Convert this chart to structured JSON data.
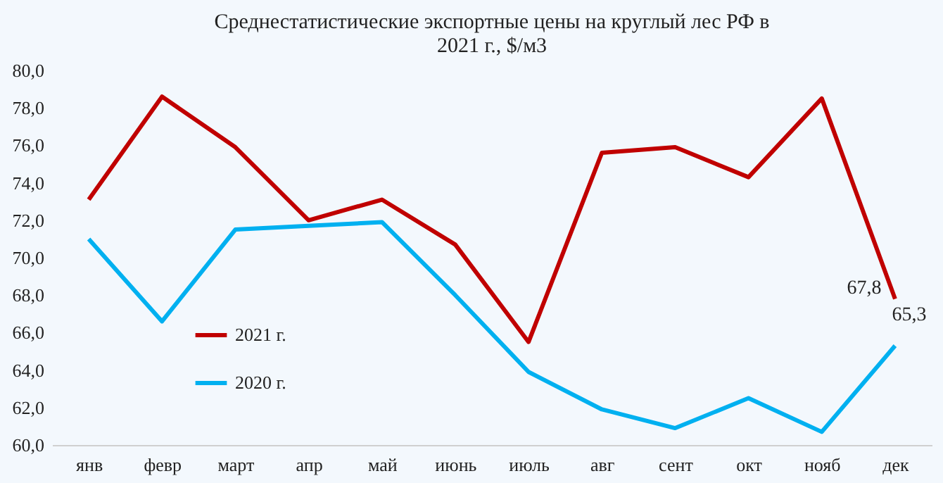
{
  "chart_data": {
    "type": "line",
    "title": "Среднестатистические экспортные цены на круглый лес РФ в 2021 г., $/м3",
    "categories": [
      "янв",
      "февр",
      "март",
      "апр",
      "май",
      "июнь",
      "июль",
      "авг",
      "сент",
      "окт",
      "нояб",
      "дек"
    ],
    "series": [
      {
        "name": "2021 г.",
        "color": "#c00000",
        "values": [
          73.1,
          78.6,
          75.9,
          72.0,
          73.1,
          70.7,
          65.5,
          75.6,
          75.9,
          74.3,
          78.5,
          67.8
        ],
        "value_labels": [
          null,
          null,
          null,
          null,
          null,
          null,
          null,
          null,
          null,
          null,
          null,
          "67,8"
        ]
      },
      {
        "name": "2020 г.",
        "color": "#00b0f0",
        "values": [
          71.0,
          66.6,
          71.5,
          71.7,
          71.9,
          68.0,
          63.9,
          61.9,
          60.9,
          62.5,
          60.7,
          65.3
        ],
        "value_labels": [
          null,
          null,
          null,
          null,
          null,
          null,
          null,
          null,
          null,
          null,
          null,
          "65,3"
        ]
      }
    ],
    "ylim": [
      60,
      80
    ],
    "yticks": [
      {
        "value": 60,
        "label": "60,0"
      },
      {
        "value": 62,
        "label": "62,0"
      },
      {
        "value": 64,
        "label": "64,0"
      },
      {
        "value": 66,
        "label": "66,0"
      },
      {
        "value": 68,
        "label": "68,0"
      },
      {
        "value": 70,
        "label": "70,0"
      },
      {
        "value": 72,
        "label": "72,0"
      },
      {
        "value": 74,
        "label": "74,0"
      },
      {
        "value": 76,
        "label": "76,0"
      },
      {
        "value": 78,
        "label": "78,0"
      },
      {
        "value": 80,
        "label": "80,0"
      }
    ],
    "grid": false,
    "legend": "bottom left",
    "marker": "none",
    "line_style": "solid"
  }
}
